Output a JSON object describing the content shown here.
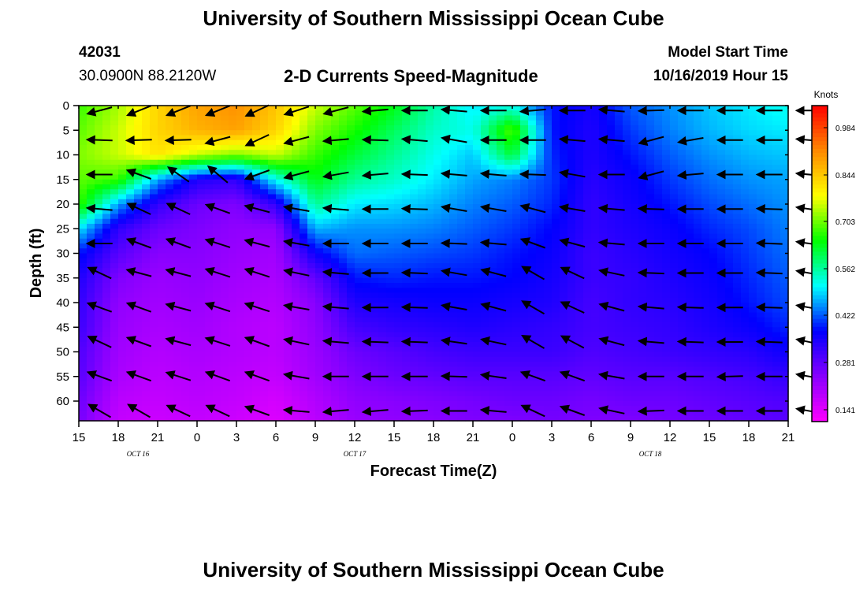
{
  "page": {
    "title_top": "University of Southern Mississippi Ocean Cube",
    "title_bottom": "University of Southern Mississippi Ocean Cube",
    "station_id": "42031",
    "station_coords": "30.0900N 88.2120W",
    "subtitle": "2-D Currents Speed-Magnitude",
    "model_start_label": "Model Start Time",
    "model_start_value": "10/16/2019 Hour 15"
  },
  "chart_data": {
    "type": "heatmap",
    "title": "2-D Currents Speed-Magnitude",
    "xlabel": "Forecast Time(Z)",
    "ylabel": "Depth (ft)",
    "x_tick_labels": [
      "15",
      "18",
      "21",
      "0",
      "3",
      "6",
      "9",
      "12",
      "15",
      "18",
      "21",
      "0",
      "3",
      "6",
      "9",
      "12",
      "15",
      "18",
      "21"
    ],
    "date_labels": [
      {
        "label": "OCT 16",
        "tick_index": 1.5
      },
      {
        "label": "OCT 17",
        "tick_index": 7
      },
      {
        "label": "OCT 18",
        "tick_index": 14.5
      }
    ],
    "y_ticks": [
      0,
      5,
      10,
      15,
      20,
      25,
      30,
      35,
      40,
      45,
      50,
      55,
      60
    ],
    "ylim": [
      0,
      64
    ],
    "y_inverted": true,
    "colorbar": {
      "title": "Knots",
      "tick_labels": [
        "0.984",
        "0.844",
        "0.703",
        "0.562",
        "0.422",
        "0.281",
        "0.141"
      ],
      "range": [
        0.07,
        1.05
      ],
      "colors": [
        "#ff00ff",
        "#8800ff",
        "#0000ff",
        "#00ffff",
        "#00ff00",
        "#ffff00",
        "#ff8800",
        "#ff0000"
      ]
    },
    "speed_field_knots": {
      "time_hours": [
        0,
        3,
        6,
        9,
        12,
        15,
        18,
        21,
        24,
        27,
        30,
        33,
        36,
        39,
        42,
        45,
        48,
        51,
        54
      ],
      "depth_ft": [
        0,
        5,
        10,
        15,
        20,
        25,
        30,
        35,
        40,
        45,
        50,
        55,
        60,
        64
      ],
      "values": [
        [
          0.66,
          0.72,
          0.82,
          0.88,
          0.9,
          0.84,
          0.74,
          0.68,
          0.62,
          0.54,
          0.48,
          0.5,
          0.36,
          0.33,
          0.4,
          0.43,
          0.46,
          0.48,
          0.5
        ],
        [
          0.68,
          0.74,
          0.82,
          0.86,
          0.88,
          0.82,
          0.7,
          0.64,
          0.58,
          0.52,
          0.5,
          0.68,
          0.36,
          0.32,
          0.38,
          0.42,
          0.45,
          0.47,
          0.48
        ],
        [
          0.7,
          0.74,
          0.8,
          0.74,
          0.7,
          0.74,
          0.66,
          0.6,
          0.55,
          0.5,
          0.46,
          0.6,
          0.37,
          0.32,
          0.36,
          0.4,
          0.43,
          0.45,
          0.46
        ],
        [
          0.68,
          0.66,
          0.44,
          0.32,
          0.3,
          0.5,
          0.62,
          0.55,
          0.52,
          0.48,
          0.44,
          0.42,
          0.38,
          0.31,
          0.34,
          0.38,
          0.41,
          0.43,
          0.44
        ],
        [
          0.66,
          0.44,
          0.3,
          0.24,
          0.22,
          0.3,
          0.55,
          0.48,
          0.47,
          0.45,
          0.42,
          0.4,
          0.37,
          0.3,
          0.33,
          0.36,
          0.39,
          0.41,
          0.43
        ],
        [
          0.48,
          0.3,
          0.24,
          0.22,
          0.2,
          0.2,
          0.45,
          0.43,
          0.43,
          0.42,
          0.4,
          0.38,
          0.35,
          0.3,
          0.32,
          0.34,
          0.37,
          0.39,
          0.42
        ],
        [
          0.36,
          0.26,
          0.21,
          0.21,
          0.19,
          0.18,
          0.34,
          0.41,
          0.4,
          0.39,
          0.38,
          0.36,
          0.34,
          0.29,
          0.31,
          0.33,
          0.35,
          0.38,
          0.41
        ],
        [
          0.32,
          0.22,
          0.19,
          0.2,
          0.18,
          0.17,
          0.25,
          0.36,
          0.37,
          0.36,
          0.36,
          0.35,
          0.33,
          0.29,
          0.3,
          0.32,
          0.34,
          0.37,
          0.4
        ],
        [
          0.3,
          0.2,
          0.18,
          0.19,
          0.17,
          0.16,
          0.21,
          0.32,
          0.33,
          0.34,
          0.34,
          0.33,
          0.32,
          0.28,
          0.3,
          0.31,
          0.33,
          0.36,
          0.39
        ],
        [
          0.29,
          0.19,
          0.17,
          0.18,
          0.16,
          0.15,
          0.2,
          0.28,
          0.3,
          0.31,
          0.32,
          0.31,
          0.3,
          0.28,
          0.29,
          0.3,
          0.32,
          0.34,
          0.37
        ],
        [
          0.27,
          0.18,
          0.16,
          0.17,
          0.16,
          0.15,
          0.19,
          0.24,
          0.26,
          0.28,
          0.29,
          0.29,
          0.29,
          0.27,
          0.28,
          0.29,
          0.3,
          0.31,
          0.34
        ],
        [
          0.26,
          0.17,
          0.15,
          0.16,
          0.15,
          0.14,
          0.18,
          0.22,
          0.24,
          0.25,
          0.26,
          0.26,
          0.26,
          0.25,
          0.26,
          0.26,
          0.27,
          0.28,
          0.3
        ],
        [
          0.24,
          0.15,
          0.14,
          0.15,
          0.14,
          0.12,
          0.16,
          0.2,
          0.21,
          0.22,
          0.23,
          0.24,
          0.24,
          0.23,
          0.24,
          0.24,
          0.25,
          0.26,
          0.27
        ],
        [
          0.23,
          0.14,
          0.13,
          0.14,
          0.13,
          0.11,
          0.15,
          0.19,
          0.2,
          0.21,
          0.22,
          0.22,
          0.23,
          0.22,
          0.22,
          0.23,
          0.24,
          0.25,
          0.26
        ]
      ]
    },
    "current_vectors": {
      "time_hours": [
        1,
        4,
        7,
        10,
        13,
        16,
        19,
        22,
        25,
        28,
        31,
        34,
        37,
        40,
        43,
        46,
        49,
        52,
        55
      ],
      "depth_ft": [
        1,
        7,
        14,
        21,
        28,
        34,
        41,
        48,
        55,
        62
      ],
      "direction_deg": [
        [
          195,
          202,
          202,
          202,
          205,
          198,
          195,
          185,
          180,
          175,
          180,
          185,
          180,
          175,
          182,
          180,
          180,
          180,
          180
        ],
        [
          178,
          182,
          182,
          195,
          205,
          195,
          185,
          178,
          175,
          170,
          180,
          180,
          175,
          175,
          195,
          190,
          180,
          180,
          175
        ],
        [
          180,
          160,
          145,
          140,
          200,
          195,
          190,
          185,
          178,
          175,
          175,
          178,
          170,
          180,
          195,
          185,
          180,
          180,
          175
        ],
        [
          175,
          155,
          155,
          160,
          165,
          170,
          175,
          180,
          178,
          170,
          170,
          165,
          170,
          175,
          178,
          180,
          180,
          178,
          172
        ],
        [
          180,
          160,
          160,
          162,
          165,
          170,
          180,
          180,
          180,
          178,
          175,
          160,
          165,
          175,
          180,
          180,
          180,
          178,
          172
        ],
        [
          155,
          165,
          165,
          162,
          162,
          168,
          175,
          180,
          178,
          170,
          165,
          150,
          155,
          168,
          178,
          180,
          180,
          178,
          170
        ],
        [
          160,
          160,
          165,
          162,
          162,
          170,
          175,
          180,
          178,
          170,
          165,
          150,
          155,
          165,
          175,
          178,
          180,
          178,
          170
        ],
        [
          155,
          160,
          165,
          162,
          160,
          168,
          175,
          178,
          178,
          172,
          168,
          150,
          152,
          165,
          175,
          178,
          180,
          178,
          168
        ],
        [
          160,
          160,
          162,
          160,
          160,
          170,
          180,
          180,
          180,
          178,
          172,
          160,
          160,
          170,
          180,
          180,
          182,
          180,
          170
        ],
        [
          150,
          150,
          155,
          155,
          160,
          175,
          185,
          185,
          182,
          180,
          175,
          155,
          160,
          168,
          182,
          180,
          180,
          180,
          170
        ]
      ]
    }
  }
}
